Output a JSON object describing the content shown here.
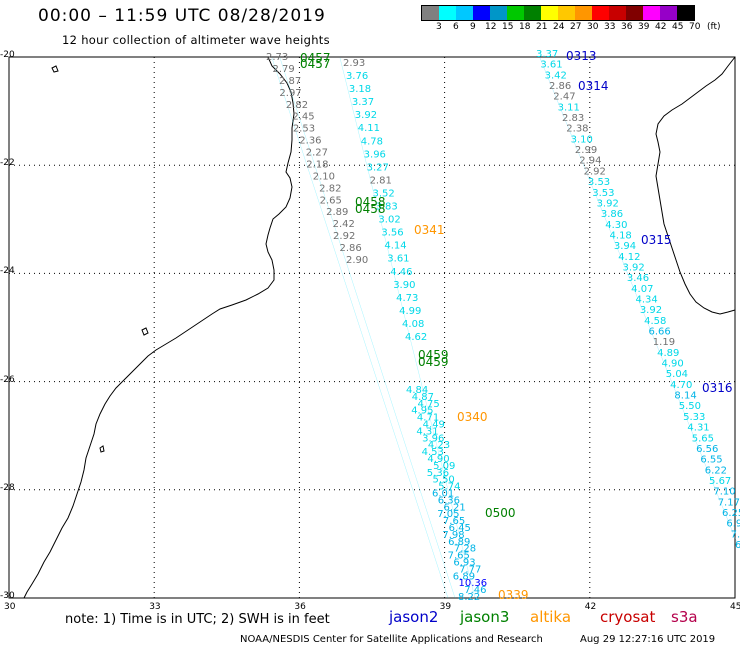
{
  "header": {
    "title": "00:00 – 11:59 UTC 08/28/2019",
    "subtitle": "12 hour collection of altimeter wave heights"
  },
  "legend": {
    "unit": "(ft)",
    "colors": [
      "#808080",
      "#00ffff",
      "#00c8ff",
      "#0000ff",
      "#0096c8",
      "#00c800",
      "#008000",
      "#ffff00",
      "#ffc800",
      "#ff9600",
      "#ff0000",
      "#c80000",
      "#800000",
      "#ff00ff",
      "#9600c8",
      "#000000"
    ],
    "labels": [
      "3",
      "6",
      "9",
      "12",
      "15",
      "18",
      "21",
      "24",
      "27",
      "30",
      "33",
      "36",
      "39",
      "42",
      "45",
      "70"
    ]
  },
  "axes": {
    "lat_labels": [
      "-20",
      "-22",
      "-24",
      "-26",
      "-28",
      "-30"
    ],
    "lon_labels": [
      "30",
      "33",
      "36",
      "39",
      "42",
      "45"
    ]
  },
  "track_labels": [
    {
      "text": "0457",
      "color": "#008000"
    },
    {
      "text": "0457",
      "color": "#008000"
    },
    {
      "text": "0458",
      "color": "#008000"
    },
    {
      "text": "0458",
      "color": "#008000"
    },
    {
      "text": "0459",
      "color": "#008000"
    },
    {
      "text": "0459",
      "color": "#008000"
    },
    {
      "text": "0500",
      "color": "#008000"
    },
    {
      "text": "0313",
      "color": "#0000c8"
    },
    {
      "text": "0314",
      "color": "#0000c8"
    },
    {
      "text": "0315",
      "color": "#0000c8"
    },
    {
      "text": "0316",
      "color": "#0000c8"
    },
    {
      "text": "0341",
      "color": "#ff9600"
    },
    {
      "text": "0340",
      "color": "#ff9600"
    },
    {
      "text": "0339",
      "color": "#ff9600"
    }
  ],
  "observations": {
    "track_a": [
      "2.73",
      "2.79",
      "2.87",
      "2.97",
      "2.82",
      "2.45",
      "2.53",
      "2.36",
      "2.27",
      "2.18",
      "2.10",
      "2.82",
      "2.65",
      "2.89",
      "2.42",
      "2.92",
      "2.86",
      "2.90"
    ],
    "track_b": [
      "2.93",
      "3.76",
      "3.18",
      "3.37",
      "3.92",
      "4.11",
      "4.78",
      "3.96",
      "3.27",
      "2.81",
      "3.52",
      "3.83",
      "3.02",
      "3.56",
      "4.14",
      "3.61",
      "4.46",
      "3.90",
      "4.73",
      "4.99",
      "4.08",
      "4.62"
    ],
    "track_c": [
      "4.84",
      "4.87",
      "4.75",
      "4.95",
      "4.71",
      "4.49",
      "4.31",
      "3.96",
      "4.23",
      "4.53",
      "4.90",
      "5.09",
      "5.36",
      "5.50",
      "5.74",
      "6.01",
      "6.36",
      "6.21",
      "7.05",
      "7.65",
      "6.45",
      "7.98",
      "6.89",
      "7.28",
      "7.65",
      "6.93",
      "7.77",
      "6.89",
      "10.36",
      "7.46",
      "8.22"
    ],
    "track_d": [
      "3.37",
      "3.61",
      "3.42",
      "2.86",
      "2.47",
      "3.11",
      "2.83",
      "2.38",
      "3.10",
      "2.99",
      "2.94",
      "2.92",
      "3.53",
      "3.53",
      "3.92",
      "3.86",
      "4.30",
      "4.18",
      "3.94",
      "4.12",
      "3.92",
      "3.46",
      "4.07",
      "4.34",
      "3.92",
      "4.58",
      "6.66",
      "1.19",
      "4.89",
      "4.90",
      "5.04",
      "4.70",
      "8.14",
      "5.50",
      "5.33",
      "4.31",
      "5.65",
      "6.56",
      "6.55",
      "6.22",
      "5.67",
      "7.10",
      "7.17",
      "6.25",
      "6.9",
      "7.3",
      "6"
    ]
  },
  "footer": {
    "note": "note: 1) Time is in UTC; 2) SWH is in feet",
    "satellites": [
      {
        "name": "jason2",
        "color": "#0000c8"
      },
      {
        "name": "jason3",
        "color": "#008000"
      },
      {
        "name": "altika",
        "color": "#ff9600"
      },
      {
        "name": "cryosat",
        "color": "#c80000"
      },
      {
        "name": "s3a",
        "color": "#b4004b"
      }
    ],
    "credit": "NOAA/NESDIS Center for Satellite Applications and Research",
    "timestamp": "Aug 29 12:27:16 UTC 2019"
  }
}
